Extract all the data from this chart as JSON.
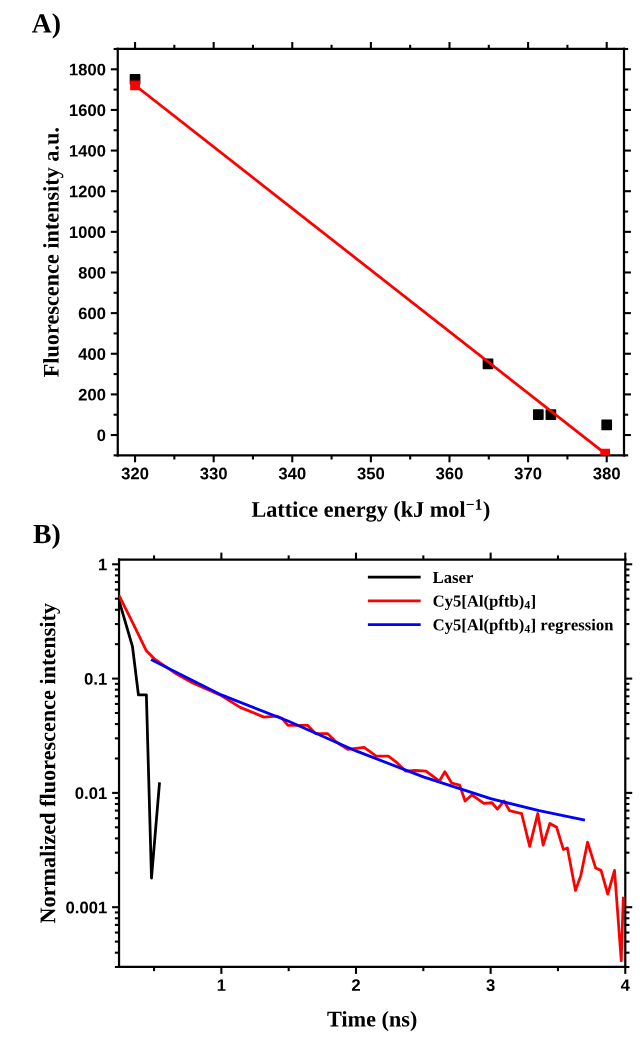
{
  "chart_data": [
    {
      "type": "scatter",
      "title": "A)",
      "xlabel": "Lattice energy (kJ mol$^{−1}$)",
      "ylabel": "Fluorescence intensity a.u.",
      "xlim": [
        317.8,
        382.2
      ],
      "xticks": [
        320,
        330,
        340,
        350,
        360,
        370,
        380
      ],
      "ylim": [
        -100,
        1900
      ],
      "yticks": [
        0,
        200,
        400,
        600,
        800,
        1000,
        1200,
        1400,
        1600,
        1800
      ],
      "grid": false,
      "legend": false,
      "marker": "square",
      "series": [
        {
          "type": "scatter",
          "color": "#000000",
          "x": [
            320,
            364.9,
            371.3,
            372.9,
            380.0
          ],
          "values": [
            1750,
            350,
            100,
            100,
            50
          ]
        },
        {
          "type": "line",
          "color": "#ff0000",
          "x": [
            320,
            379.8
          ],
          "values": [
            1721,
            -91
          ]
        }
      ]
    },
    {
      "type": "line",
      "title": "B)",
      "xlabel": "Time (ns)",
      "ylabel": "Normalized fluorescence intensity",
      "log": "y",
      "xlim": [
        0.24,
        4.0
      ],
      "xticks": [
        1,
        2,
        3,
        4
      ],
      "ylim": [
        0.0003,
        1.1
      ],
      "yticks": [
        {
          "value": 1,
          "label": "1"
        },
        {
          "value": 0.1,
          "label": "0.1"
        },
        {
          "value": 0.01,
          "label": "0.01"
        },
        {
          "value": 0.001,
          "label": "0.001"
        }
      ],
      "grid": false,
      "legend": "top right",
      "marker": "none",
      "line_style": "solid",
      "series": [
        {
          "name": "Laser",
          "color": "#000000",
          "x": [
            0.245,
            0.34,
            0.384,
            0.443,
            0.481,
            0.54
          ],
          "values": [
            0.46,
            0.19,
            0.072,
            0.072,
            0.0018,
            0.012
          ]
        },
        {
          "name": "Cy5[Al(pftb)$_{4}$]",
          "color": "#ff0000",
          "x": [
            0.245,
            0.34,
            0.443,
            0.502,
            0.665,
            0.784,
            0.99,
            1.14,
            1.317,
            1.41,
            1.45,
            1.495,
            1.64,
            1.7,
            1.79,
            1.85,
            1.94,
            2.06,
            2.15,
            2.24,
            2.29,
            2.37,
            2.44,
            2.52,
            2.62,
            2.66,
            2.71,
            2.77,
            2.81,
            2.86,
            2.95,
            3.01,
            3.05,
            3.1,
            3.14,
            3.23,
            3.29,
            3.35,
            3.39,
            3.44,
            3.49,
            3.54,
            3.57,
            3.63,
            3.67,
            3.72,
            3.78,
            3.82,
            3.87,
            3.92,
            3.97,
            3.985
          ],
          "values": [
            0.52,
            0.31,
            0.175,
            0.149,
            0.11,
            0.092,
            0.072,
            0.056,
            0.046,
            0.047,
            0.045,
            0.039,
            0.039,
            0.033,
            0.033,
            0.028,
            0.024,
            0.025,
            0.021,
            0.021,
            0.019,
            0.0155,
            0.0157,
            0.0155,
            0.0127,
            0.0153,
            0.0122,
            0.0117,
            0.0085,
            0.0096,
            0.0081,
            0.0082,
            0.0072,
            0.0085,
            0.007,
            0.0066,
            0.0034,
            0.0066,
            0.0035,
            0.0054,
            0.005,
            0.0032,
            0.0033,
            0.0014,
            0.0019,
            0.0037,
            0.0022,
            0.0021,
            0.0013,
            0.0021,
            0.00034,
            0.0012
          ]
        },
        {
          "name": "Cy5[Al(pftb)$_{4}$] regression",
          "color": "#0000ff",
          "x": [
            0.487,
            1.0,
            1.495,
            2.0,
            2.5,
            3.0,
            3.36,
            3.69
          ],
          "values": [
            0.145,
            0.072,
            0.0426,
            0.0233,
            0.0138,
            0.0089,
            0.007,
            0.0058
          ]
        }
      ]
    }
  ]
}
